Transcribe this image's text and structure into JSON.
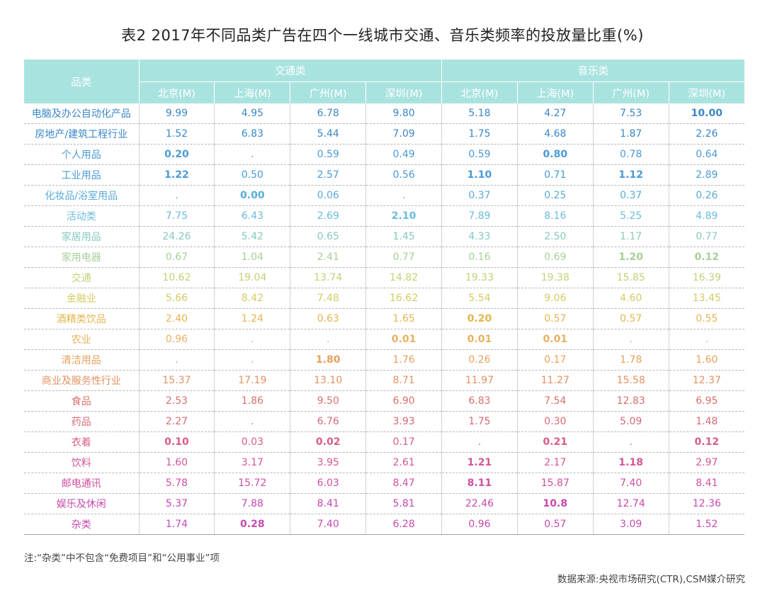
{
  "title": "表2 2017年不同品类广告在四个一线城市交通、音乐类频率的投放量比重(%)",
  "header": {
    "category_label": "品类",
    "groups": [
      "交通类",
      "音乐类"
    ],
    "cities": [
      "北京(M)",
      "上海(M)",
      "广州(M)",
      "深圳(M)",
      "北京(M)",
      "上海(M)",
      "广州(M)",
      "深圳(M)"
    ]
  },
  "row_colors": [
    "#3a87c8",
    "#3a87c8",
    "#4a9ad6",
    "#4a9ad6",
    "#5aabd8",
    "#6bbcda",
    "#86c9c0",
    "#a7cf98",
    "#c7cf78",
    "#d4cb62",
    "#e4b54e",
    "#e8b060",
    "#e8a05c",
    "#e29262",
    "#d8706c",
    "#d66a76",
    "#d95c88",
    "#d45696",
    "#cf4ea2",
    "#c848ac",
    "#c44cb0"
  ],
  "chart_data": {
    "type": "table",
    "title": "表2 2017年不同品类广告在四个一线城市交通、音乐类频率的投放量比重(%)",
    "columns": [
      "品类",
      "交通类 北京(M)",
      "交通类 上海(M)",
      "交通类 广州(M)",
      "交通类 深圳(M)",
      "音乐类 北京(M)",
      "音乐类 上海(M)",
      "音乐类 广州(M)",
      "音乐类 深圳(M)"
    ],
    "rows": [
      {
        "category": "电脑及办公自动化产品",
        "values": [
          "9.99",
          "4.95",
          "6.78",
          "9.80",
          "5.18",
          "4.27",
          "7.53",
          "10.00"
        ],
        "bold": [
          7
        ]
      },
      {
        "category": "房地产/建筑工程行业",
        "values": [
          "1.52",
          "6.83",
          "5.44",
          "7.09",
          "1.75",
          "4.68",
          "1.87",
          "2.26"
        ],
        "bold": []
      },
      {
        "category": "个人用品",
        "values": [
          "0.20",
          ".",
          "0.59",
          "0.49",
          "0.59",
          "0.80",
          "0.78",
          "0.64"
        ],
        "bold": [
          0,
          5
        ]
      },
      {
        "category": "工业用品",
        "values": [
          "1.22",
          "0.50",
          "2.57",
          "0.56",
          "1.10",
          "0.71",
          "1.12",
          "2.89"
        ],
        "bold": [
          0,
          4,
          6
        ]
      },
      {
        "category": "化妆品/浴室用品",
        "values": [
          ".",
          "0.00",
          "0.06",
          ".",
          "0.37",
          "0.25",
          "0.37",
          "0.26"
        ],
        "bold": [
          1
        ]
      },
      {
        "category": "活动类",
        "values": [
          "7.75",
          "6.43",
          "2.69",
          "2.10",
          "7.89",
          "8.16",
          "5.25",
          "4.89"
        ],
        "bold": [
          3
        ]
      },
      {
        "category": "家居用品",
        "values": [
          "24.26",
          "5.42",
          "0.65",
          "1.45",
          "4.33",
          "2.50",
          "1.17",
          "0.77"
        ],
        "bold": []
      },
      {
        "category": "家用电器",
        "values": [
          "0.67",
          "1.04",
          "2.41",
          "0.77",
          "0.16",
          "0.69",
          "1.20",
          "0.12"
        ],
        "bold": [
          6,
          7
        ]
      },
      {
        "category": "交通",
        "values": [
          "10.62",
          "19.04",
          "13.74",
          "14.82",
          "19.33",
          "19.38",
          "15.85",
          "16.39"
        ],
        "bold": []
      },
      {
        "category": "金融业",
        "values": [
          "5.66",
          "8.42",
          "7.48",
          "16.62",
          "5.54",
          "9.06",
          "4.60",
          "13.45"
        ],
        "bold": []
      },
      {
        "category": "酒精类饮品",
        "values": [
          "2.40",
          "1.24",
          "0.63",
          "1.65",
          "0.20",
          "0.57",
          "0.57",
          "0.55"
        ],
        "bold": [
          4
        ]
      },
      {
        "category": "农业",
        "values": [
          "0.96",
          ".",
          ".",
          "0.01",
          "0.01",
          "0.01",
          ".",
          "."
        ],
        "bold": [
          3,
          4,
          5
        ]
      },
      {
        "category": "清洁用品",
        "values": [
          ".",
          ".",
          "1.80",
          "1.76",
          "0.26",
          "0.17",
          "1.78",
          "1.60"
        ],
        "bold": [
          2
        ]
      },
      {
        "category": "商业及服务性行业",
        "values": [
          "15.37",
          "17.19",
          "13.10",
          "8.71",
          "11.97",
          "11.27",
          "15.58",
          "12.37"
        ],
        "bold": []
      },
      {
        "category": "食品",
        "values": [
          "2.53",
          "1.86",
          "9.50",
          "6.90",
          "6.83",
          "7.54",
          "12.83",
          "6.95"
        ],
        "bold": []
      },
      {
        "category": "药品",
        "values": [
          "2.27",
          ".",
          "6.76",
          "3.93",
          "1.75",
          "0.30",
          "5.09",
          "1.48"
        ],
        "bold": []
      },
      {
        "category": "衣着",
        "values": [
          "0.10",
          "0.03",
          "0.02",
          "0.17",
          ".",
          "0.21",
          ".",
          "0.12"
        ],
        "bold": [
          0,
          2,
          5,
          7
        ]
      },
      {
        "category": "饮料",
        "values": [
          "1.60",
          "3.17",
          "3.95",
          "2.61",
          "1.21",
          "2.17",
          "1.18",
          "2.97"
        ],
        "bold": [
          4,
          6
        ]
      },
      {
        "category": "邮电通讯",
        "values": [
          "5.78",
          "15.72",
          "6.03",
          "8.47",
          "8.11",
          "15.87",
          "7.40",
          "8.41"
        ],
        "bold": [
          4
        ]
      },
      {
        "category": "娱乐及休闲",
        "values": [
          "5.37",
          "7.88",
          "8.41",
          "5.81",
          "22.46",
          "10.8",
          "12.74",
          "12.36"
        ],
        "bold": [
          5
        ]
      },
      {
        "category": "杂类",
        "values": [
          "1.74",
          "0.28",
          "7.40",
          "6.28",
          "0.96",
          "0.57",
          "3.09",
          "1.52"
        ],
        "bold": [
          1
        ]
      }
    ]
  },
  "note": "注:“杂类”中不包含“免费项目”和“公用事业”项",
  "source": "数据来源:央视市场研究(CTR),CSM媒介研究"
}
